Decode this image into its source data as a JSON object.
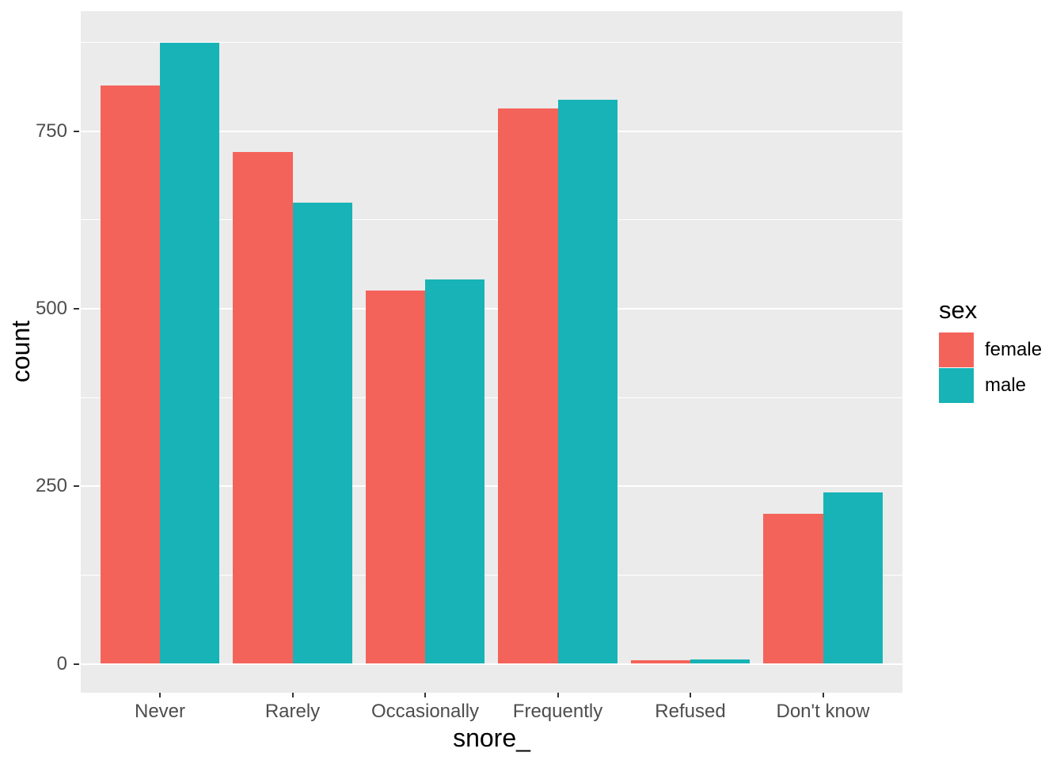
{
  "chart_data": {
    "type": "bar",
    "bar_mode": "dodge",
    "title": "",
    "xlabel": "snore_",
    "ylabel": "count",
    "categories": [
      "Never",
      "Rarely",
      "Occasionally",
      "Frequently",
      "Refused",
      "Don't know"
    ],
    "series": [
      {
        "name": "female",
        "color": "#f4635a",
        "values": [
          814,
          720,
          526,
          782,
          5,
          211
        ]
      },
      {
        "name": "male",
        "color": "#17b3b6",
        "values": [
          874,
          649,
          541,
          794,
          6,
          241
        ]
      }
    ],
    "y_ticks": [
      0,
      250,
      500,
      750
    ],
    "y_minor_ticks": [
      125,
      375,
      625,
      875
    ],
    "ylim": [
      -41,
      918
    ],
    "grid": "major+minor",
    "legend": {
      "title": "sex",
      "position": "right"
    },
    "colors": {
      "panel_bg": "#ebebeb",
      "grid": "#ffffff",
      "axis_text": "#4d4d4d",
      "title_text": "#000000",
      "tick_mark": "#333333"
    }
  }
}
